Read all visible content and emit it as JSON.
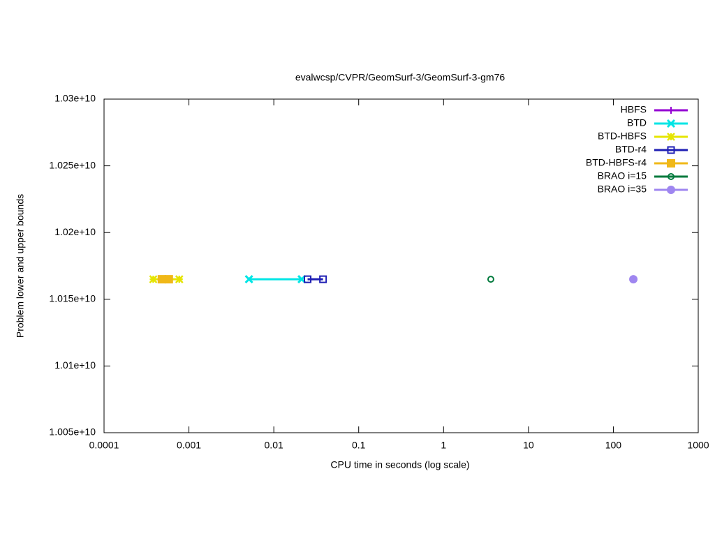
{
  "chart_data": {
    "type": "line",
    "title": "evalwcsp/CVPR/GeomSurf-3/GeomSurf-3-gm76",
    "x_label": "CPU time in seconds (log scale)",
    "y_label": "Problem lower and upper bounds",
    "xlog": true,
    "xlim": [
      0.0001,
      1000
    ],
    "xticks": [
      0.0001,
      0.001,
      0.01,
      0.1,
      1,
      10,
      100,
      1000
    ],
    "ylim": [
      10050000000,
      10300000000
    ],
    "yticks": [
      {
        "value": 10050000000,
        "label": "1.005e+10"
      },
      {
        "value": 10100000000,
        "label": "1.01e+10"
      },
      {
        "value": 10150000000,
        "label": "1.015e+10"
      },
      {
        "value": 10200000000,
        "label": "1.02e+10"
      },
      {
        "value": 10250000000,
        "label": "1.025e+10"
      },
      {
        "value": 10300000000,
        "label": "1.03e+10"
      }
    ],
    "legend": "top-right",
    "series": [
      {
        "name": "HBFS",
        "color": "#9400d3",
        "marker": "plus",
        "x": [
          0.00044,
          0.00046
        ],
        "values": [
          10165000000,
          10165000000
        ]
      },
      {
        "name": "BTD",
        "color": "#00e5e5",
        "marker": "cross",
        "x": [
          0.0051,
          0.0213
        ],
        "values": [
          10165000000,
          10165000000
        ]
      },
      {
        "name": "BTD-HBFS",
        "color": "#e5e500",
        "marker": "star",
        "x": [
          0.00038,
          0.00077
        ],
        "values": [
          10165000000,
          10165000000
        ]
      },
      {
        "name": "BTD-r4",
        "color": "#1f1fb4",
        "marker": "box-open",
        "x": [
          0.025,
          0.038
        ],
        "values": [
          10165000000,
          10165000000
        ]
      },
      {
        "name": "BTD-HBFS-r4",
        "color": "#f0b818",
        "marker": "box-filled",
        "x": [
          0.00048,
          0.00058
        ],
        "values": [
          10165000000,
          10165000000
        ]
      },
      {
        "name": "BRAO i=15",
        "color": "#007a3d",
        "marker": "circle-open",
        "x": [
          3.6
        ],
        "values": [
          10165000000
        ]
      },
      {
        "name": "BRAO i=35",
        "color": "#9f86f0",
        "marker": "circle-filled",
        "x": [
          172
        ],
        "values": [
          10165000000
        ]
      }
    ]
  }
}
